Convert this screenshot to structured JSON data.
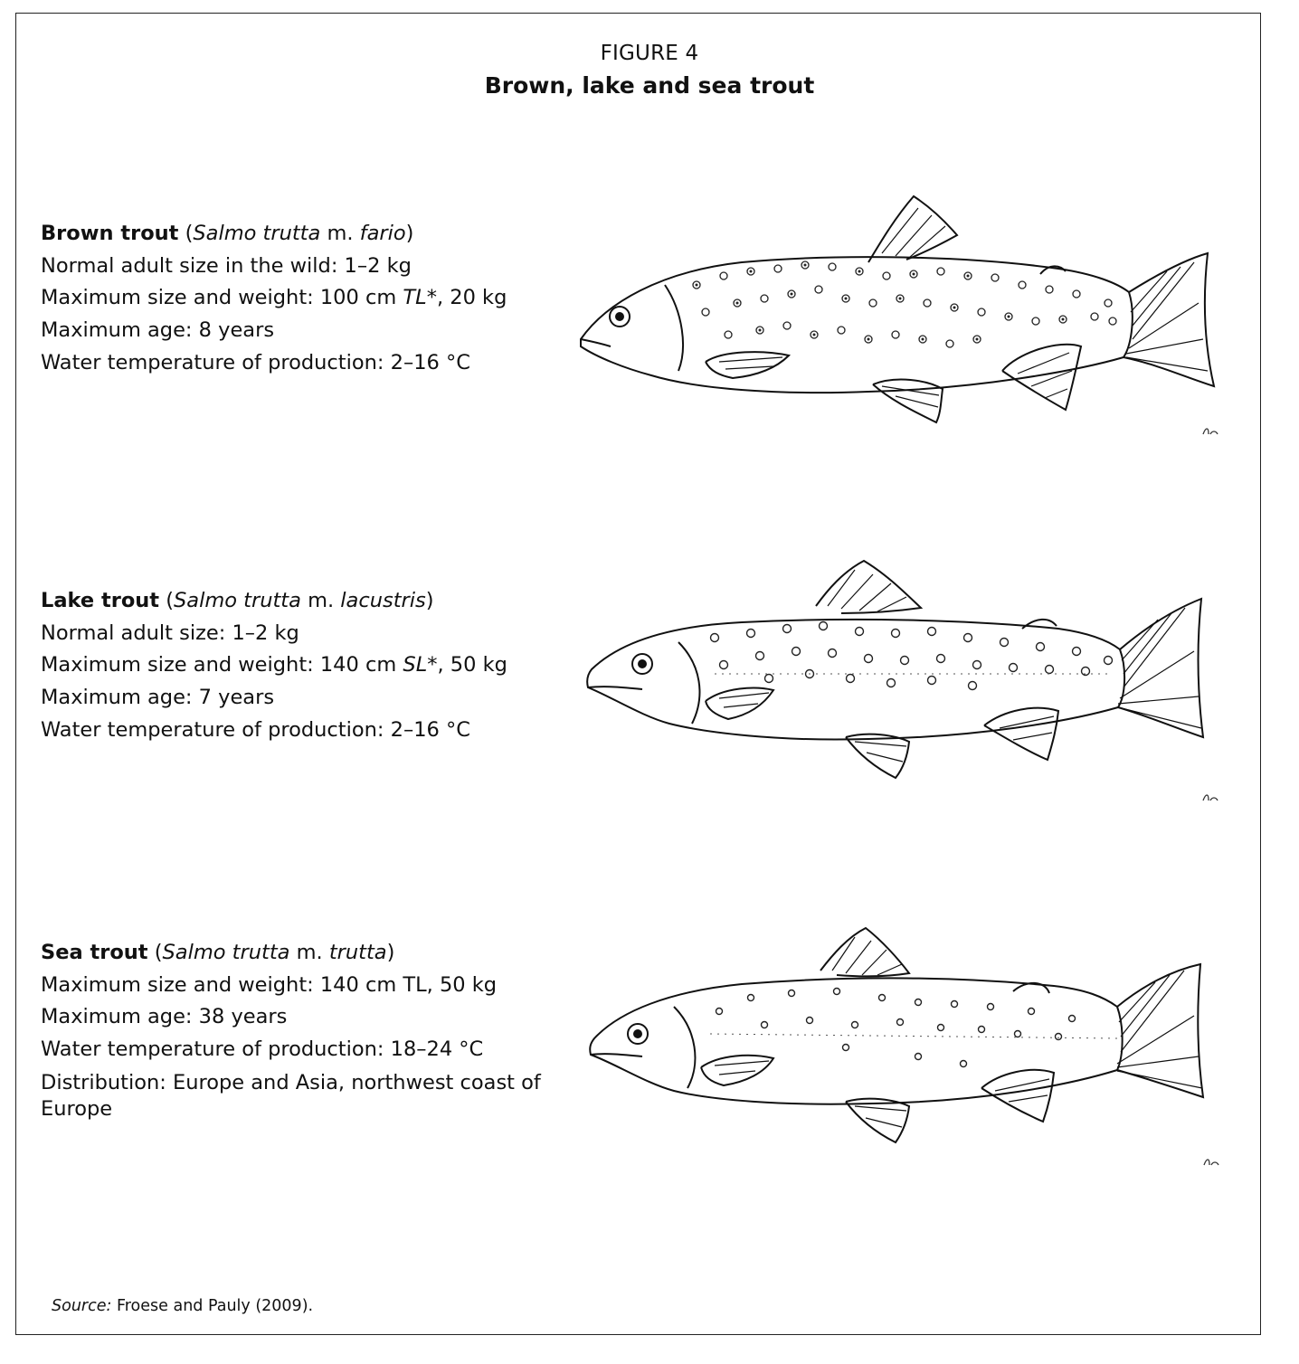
{
  "figure": {
    "label": "FIGURE 4",
    "title": "Brown, lake and sea trout"
  },
  "species": [
    {
      "common_name": "Brown trout",
      "paren_open": " (",
      "genus_species": "Salmo trutta",
      "form_prefix": " m. ",
      "form": "fario",
      "paren_close": ")",
      "lines": [
        "Normal adult size in the wild: 1–2 kg",
        "Maximum age: 8 years",
        "Water temperature of production: 2–16 °C"
      ],
      "size_prefix": "Maximum size and weight: 100 cm ",
      "size_measure": "TL*",
      "size_suffix": ", 20 kg"
    },
    {
      "common_name": "Lake trout",
      "paren_open": " (",
      "genus_species": "Salmo trutta",
      "form_prefix": " m. ",
      "form": "lacustris",
      "paren_close": ")",
      "lines": [
        "Normal adult size: 1–2 kg",
        "Maximum age: 7 years",
        "Water temperature of production: 2–16 °C"
      ],
      "size_prefix": "Maximum size and weight: 140 cm ",
      "size_measure": "SL*",
      "size_suffix": ", 50 kg"
    },
    {
      "common_name": "Sea trout",
      "paren_open": " (",
      "genus_species": "Salmo trutta",
      "form_prefix": " m. ",
      "form": "trutta",
      "paren_close": ")",
      "lines": [
        "Maximum size and weight: 140 cm TL, 50 kg",
        "Maximum age: 38 years",
        "Water temperature of production: 18–24 °C",
        "Distribution: Europe and Asia, northwest coast of Europe"
      ]
    }
  ],
  "source": {
    "label": "Source:",
    "text": " Froese and Pauly (2009)."
  }
}
